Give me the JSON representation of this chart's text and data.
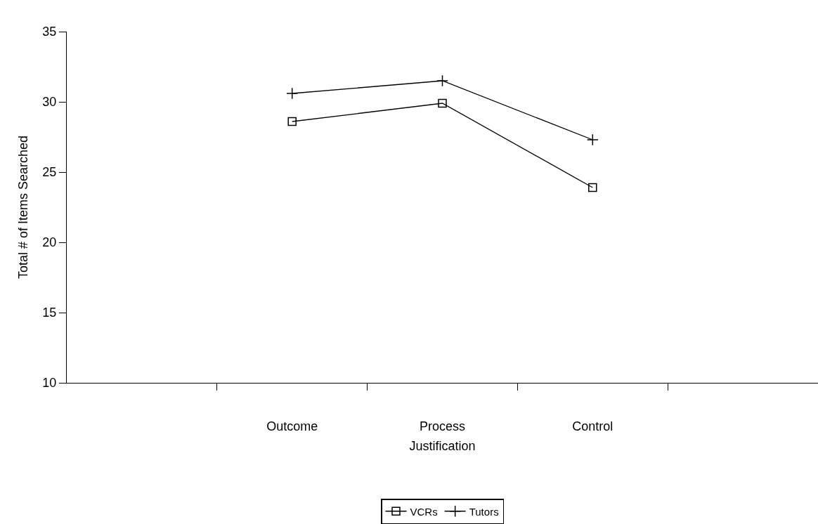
{
  "chart_data": {
    "type": "line",
    "xlabel": "Justification",
    "ylabel": "Total # of Items Searched",
    "categories": [
      null,
      "Outcome",
      "Process",
      "Control",
      null
    ],
    "series": [
      {
        "name": "VCRs",
        "color": "#000000",
        "marker": "square",
        "values": [
          null,
          28.6,
          29.9,
          23.9,
          null
        ]
      },
      {
        "name": "Tutors",
        "color": "#000000",
        "marker": "cross",
        "values": [
          null,
          30.6,
          31.5,
          27.3,
          null
        ]
      }
    ],
    "ylim": [
      10,
      35
    ],
    "yticks": [
      10,
      15,
      20,
      25,
      30,
      35
    ],
    "grid": false,
    "legend": "bottom",
    "line_style": "solid"
  }
}
